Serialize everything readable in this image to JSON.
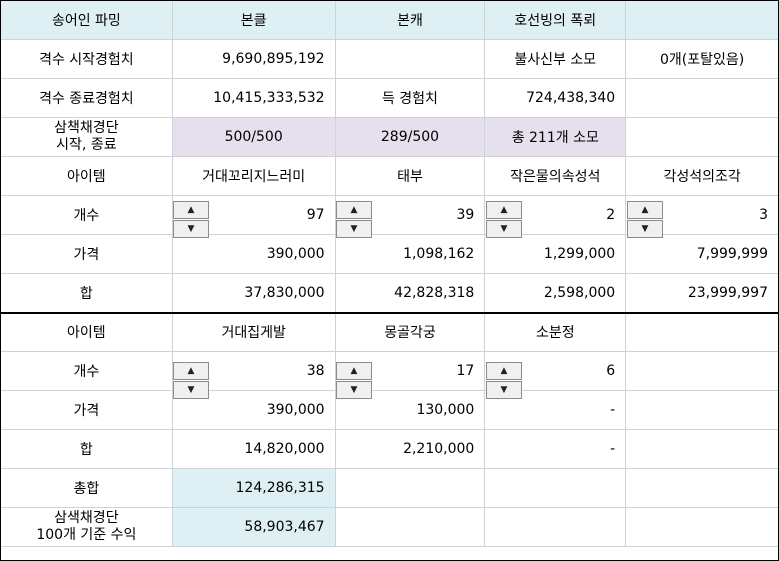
{
  "header": {
    "c0": "송어인 파밍",
    "c1": "본클",
    "c2": "본캐",
    "c3": "호선빙의 폭뢰"
  },
  "row1": {
    "label": "격수 시작경험치",
    "start_exp": "9,690,895,192",
    "c3": "불사신부 소모",
    "c4": "0개(포탈있음)"
  },
  "row2": {
    "label": "격수 종료경험치",
    "end_exp": "10,415,333,532",
    "c2": "득 경험치",
    "gained": "724,438,340"
  },
  "row3": {
    "label_l1": "삼책채경단",
    "label_l2": "시작, 종료",
    "v1": "500/500",
    "v2": "289/500",
    "v3": "총 211개 소모"
  },
  "items_a": {
    "label": "아이템",
    "names": [
      "거대꼬리지느러미",
      "태부",
      "작은물의속성석",
      "각성석의조각"
    ],
    "count_label": "개수",
    "counts": [
      "97",
      "39",
      "2",
      "3"
    ],
    "price_label": "가격",
    "prices": [
      "390,000",
      "1,098,162",
      "1,299,000",
      "7,999,999"
    ],
    "sum_label": "합",
    "sums": [
      "37,830,000",
      "42,828,318",
      "2,598,000",
      "23,999,997"
    ]
  },
  "items_b": {
    "label": "아이템",
    "names": [
      "거대집게발",
      "몽골각궁",
      "소분정"
    ],
    "count_label": "개수",
    "counts": [
      "38",
      "17",
      "6"
    ],
    "price_label": "가격",
    "prices": [
      "390,000",
      "130,000",
      "-"
    ],
    "sum_label": "합",
    "sums": [
      "14,820,000",
      "2,210,000",
      "-"
    ]
  },
  "total": {
    "label": "총합",
    "value": "124,286,315"
  },
  "profit": {
    "label_l1": "삼색채경단",
    "label_l2": "100개 기준 수익",
    "value": "58,903,467"
  },
  "icons": {
    "spin_up": "▲",
    "spin_down": "▼"
  },
  "colors": {
    "header_bg": "#dff0f4",
    "stock_bg": "#e6e0ee"
  }
}
